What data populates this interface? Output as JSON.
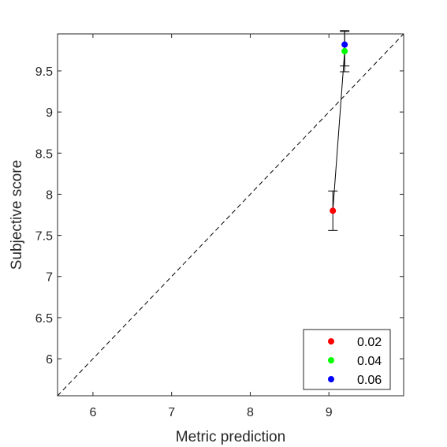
{
  "chart_data": {
    "type": "scatter",
    "xlabel": "Metric prediction",
    "ylabel": "Subjective score",
    "xlim": [
      5.55,
      9.95
    ],
    "ylim": [
      5.55,
      9.95
    ],
    "xticks": [
      6,
      7,
      8,
      9
    ],
    "yticks": [
      6,
      6.5,
      7,
      7.5,
      8,
      8.5,
      9,
      9.5
    ],
    "xtick_labels": [
      "6",
      "7",
      "8",
      "9"
    ],
    "ytick_labels": [
      "6",
      "6.5",
      "7",
      "7.5",
      "8",
      "8.5",
      "9",
      "9.5"
    ],
    "grid": false,
    "legend_position": "bottom-right",
    "reference_line": "y = x (dashed)",
    "connecting_line": true,
    "points": [
      {
        "label": "0.02",
        "x": 9.05,
        "y": 7.8,
        "err_low": 7.56,
        "err_high": 8.04,
        "color": "#ff0000"
      },
      {
        "label": "0.04",
        "x": 9.2,
        "y": 9.74,
        "err_low": 9.49,
        "err_high": 9.98,
        "color": "#00ff00"
      },
      {
        "label": "0.06",
        "x": 9.2,
        "y": 9.82,
        "err_low": 9.56,
        "err_high": 9.99,
        "color": "#0000ff"
      }
    ]
  }
}
